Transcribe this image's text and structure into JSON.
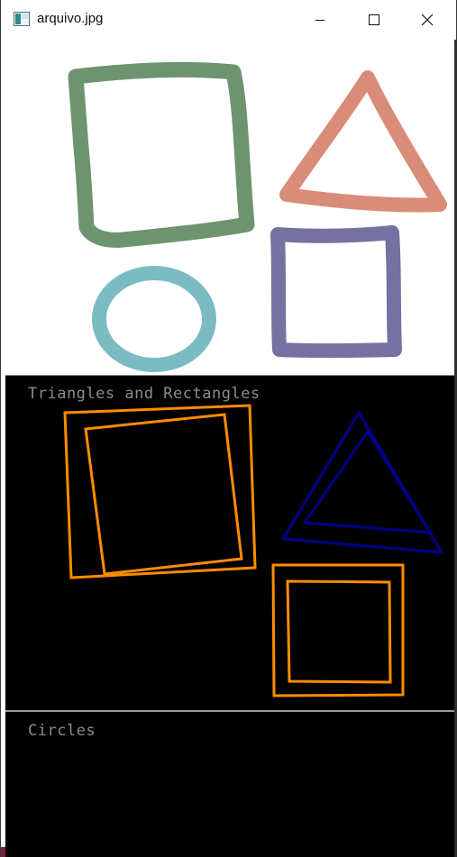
{
  "window": {
    "title": "arquivo.jpg",
    "controls": {
      "minimize_icon": "minimize-icon",
      "maximize_icon": "maximize-icon",
      "close_icon": "close-icon"
    }
  },
  "panels": {
    "triangles_rectangles": {
      "label": "Triangles and Rectangles"
    },
    "circles": {
      "label": "Circles"
    }
  },
  "colors": {
    "green_square": "#6e946f",
    "salmon_triangle": "#d98c78",
    "teal_circle": "#7bbcc2",
    "purple_square": "#7571a0",
    "rectangle_outline": "#ff8c00",
    "triangle_outline": "#00008b",
    "panel_label": "#8c8c8c"
  }
}
